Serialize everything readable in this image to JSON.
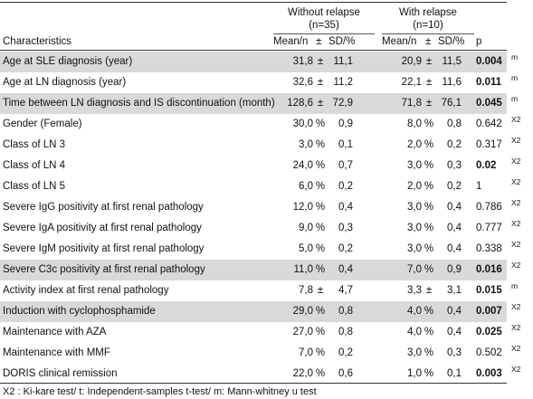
{
  "header": {
    "group1_title": "Without relapse",
    "group1_n": "(n=35)",
    "group2_title": "With relapse",
    "group2_n": "(n=10)",
    "characteristics": "Characteristics",
    "mean_n": "Mean/n",
    "pm": "±",
    "sd_pct": "SD/%",
    "p": "p"
  },
  "rows": [
    {
      "label": "Age at SLE diagnosis (year)",
      "g1_val": "31,8",
      "g1_sym": "±",
      "g1_sd": "11,1",
      "g2_val": "20,9",
      "g2_sym": "±",
      "g2_sd": "11,5",
      "p": "0.004",
      "p_bold": true,
      "test": "m",
      "shade": true
    },
    {
      "label": "Age at LN diagnosis (year)",
      "g1_val": "32,6",
      "g1_sym": "±",
      "g1_sd": "11,2",
      "g2_val": "22,1",
      "g2_sym": "±",
      "g2_sd": "11,6",
      "p": "0.011",
      "p_bold": true,
      "test": "m",
      "shade": false
    },
    {
      "label": "Time between LN diagnosis and IS discontinuation (month)",
      "g1_val": "128,6",
      "g1_sym": "±",
      "g1_sd": "72,9",
      "g2_val": "71,8",
      "g2_sym": "±",
      "g2_sd": "76,1",
      "p": "0.045",
      "p_bold": true,
      "test": "m",
      "shade": true
    },
    {
      "label": "Gender (Female)",
      "g1_val": "30,0",
      "g1_sym": "%",
      "g1_sd": "0,9",
      "g2_val": "8,0",
      "g2_sym": "%",
      "g2_sd": "0,8",
      "p": "0.642",
      "p_bold": false,
      "test": "X2",
      "shade": false
    },
    {
      "label": "Class of LN 3",
      "g1_val": "3,0",
      "g1_sym": "%",
      "g1_sd": "0,1",
      "g2_val": "2,0",
      "g2_sym": "%",
      "g2_sd": "0,2",
      "p": "0.317",
      "p_bold": false,
      "test": "X2",
      "shade": false
    },
    {
      "label": "Class of LN 4",
      "g1_val": "24,0",
      "g1_sym": "%",
      "g1_sd": "0,7",
      "g2_val": "3,0",
      "g2_sym": "%",
      "g2_sd": "0,3",
      "p": "0.02",
      "p_bold": true,
      "test": "X2",
      "shade": false
    },
    {
      "label": "Class of LN 5",
      "g1_val": "6,0",
      "g1_sym": "%",
      "g1_sd": "0,2",
      "g2_val": "2,0",
      "g2_sym": "%",
      "g2_sd": "0,2",
      "p": "1",
      "p_bold": false,
      "test": "X2",
      "shade": false
    },
    {
      "label": "Severe IgG positivity at first renal pathology",
      "g1_val": "12,0",
      "g1_sym": "%",
      "g1_sd": "0,4",
      "g2_val": "3,0",
      "g2_sym": "%",
      "g2_sd": "0,4",
      "p": "0.786",
      "p_bold": false,
      "test": "X2",
      "shade": false
    },
    {
      "label": "Severe IgA positivity at first renal pathology",
      "g1_val": "9,0",
      "g1_sym": "%",
      "g1_sd": "0,3",
      "g2_val": "3,0",
      "g2_sym": "%",
      "g2_sd": "0,4",
      "p": "0.777",
      "p_bold": false,
      "test": "X2",
      "shade": false
    },
    {
      "label": "Severe IgM positivity at first renal pathology",
      "g1_val": "5,0",
      "g1_sym": "%",
      "g1_sd": "0,2",
      "g2_val": "3,0",
      "g2_sym": "%",
      "g2_sd": "0,4",
      "p": "0.338",
      "p_bold": false,
      "test": "X2",
      "shade": false
    },
    {
      "label": "Severe C3c positivity at first renal pathology",
      "g1_val": "11,0",
      "g1_sym": "%",
      "g1_sd": "0,4",
      "g2_val": "7,0",
      "g2_sym": "%",
      "g2_sd": "0,9",
      "p": "0.016",
      "p_bold": true,
      "test": "X2",
      "shade": true
    },
    {
      "label": "Activity index at first renal pathology",
      "g1_val": "7,8",
      "g1_sym": "±",
      "g1_sd": "4,7",
      "g2_val": "3,3",
      "g2_sym": "±",
      "g2_sd": "3,1",
      "p": "0.015",
      "p_bold": true,
      "test": "m",
      "shade": false
    },
    {
      "label": "Induction with cyclophosphamide",
      "g1_val": "29,0",
      "g1_sym": "%",
      "g1_sd": "0,8",
      "g2_val": "4,0",
      "g2_sym": "%",
      "g2_sd": "0,4",
      "p": "0.007",
      "p_bold": true,
      "test": "X2",
      "shade": true
    },
    {
      "label": "Maintenance with AZA",
      "g1_val": "27,0",
      "g1_sym": "%",
      "g1_sd": "0,8",
      "g2_val": "4,0",
      "g2_sym": "%",
      "g2_sd": "0,4",
      "p": "0.025",
      "p_bold": true,
      "test": "X2",
      "shade": false
    },
    {
      "label": "Maintenance with MMF",
      "g1_val": "7,0",
      "g1_sym": "%",
      "g1_sd": "0,2",
      "g2_val": "3,0",
      "g2_sym": "%",
      "g2_sd": "0,3",
      "p": "0.502",
      "p_bold": false,
      "test": "X2",
      "shade": false
    },
    {
      "label": "DORIS clinical remission",
      "g1_val": "22,0",
      "g1_sym": "%",
      "g1_sd": "0,6",
      "g2_val": "1,0",
      "g2_sym": "%",
      "g2_sd": "0,1",
      "p": "0.003",
      "p_bold": true,
      "test": "X2",
      "shade": false
    }
  ],
  "footnote": "X2 : Ki-kare test/ t: Independent-samples t-test/ m: Mann-whitney u test",
  "colors": {
    "shade": "#d9d9d9",
    "rule": "#333333"
  }
}
